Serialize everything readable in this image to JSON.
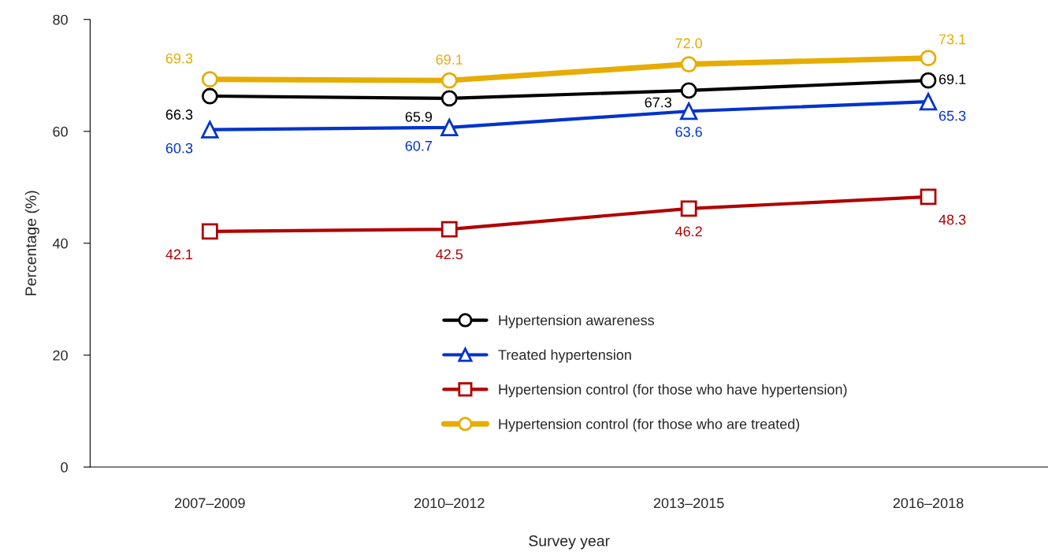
{
  "chart_data": {
    "type": "line",
    "xlabel": "Survey year",
    "ylabel": "Percentage (%)",
    "categories": [
      "2007–2009",
      "2010–2012",
      "2013–2015",
      "2016–2018"
    ],
    "series": [
      {
        "name": "Hypertension awareness",
        "color": "#000000",
        "marker": "circle",
        "values": [
          66.3,
          65.9,
          67.3,
          69.1
        ],
        "value_labels": [
          "66.3",
          "65.9",
          "67.3",
          "69.1"
        ]
      },
      {
        "name": "Treated hypertension",
        "color": "#0033cc",
        "marker": "triangle",
        "values": [
          60.3,
          60.7,
          63.6,
          65.3
        ],
        "value_labels": [
          "60.3",
          "60.7",
          "63.6",
          "65.3"
        ]
      },
      {
        "name": "Hypertension control (for those who have hypertension)",
        "color": "#b00000",
        "marker": "square",
        "values": [
          42.1,
          42.5,
          46.2,
          48.3
        ],
        "value_labels": [
          "42.1",
          "42.5",
          "46.2",
          "48.3"
        ]
      },
      {
        "name": "Hypertension control (for those who are treated)",
        "color": "#e6ac00",
        "marker": "circle",
        "values": [
          69.3,
          69.1,
          72.0,
          73.1
        ],
        "value_labels": [
          "69.3",
          "69.1",
          "72.0",
          "73.1"
        ]
      }
    ],
    "ylim": [
      0,
      80
    ],
    "yticks": [
      0,
      20,
      40,
      60,
      80
    ],
    "legend": "bottom",
    "grid": false,
    "line_style": "solid"
  }
}
